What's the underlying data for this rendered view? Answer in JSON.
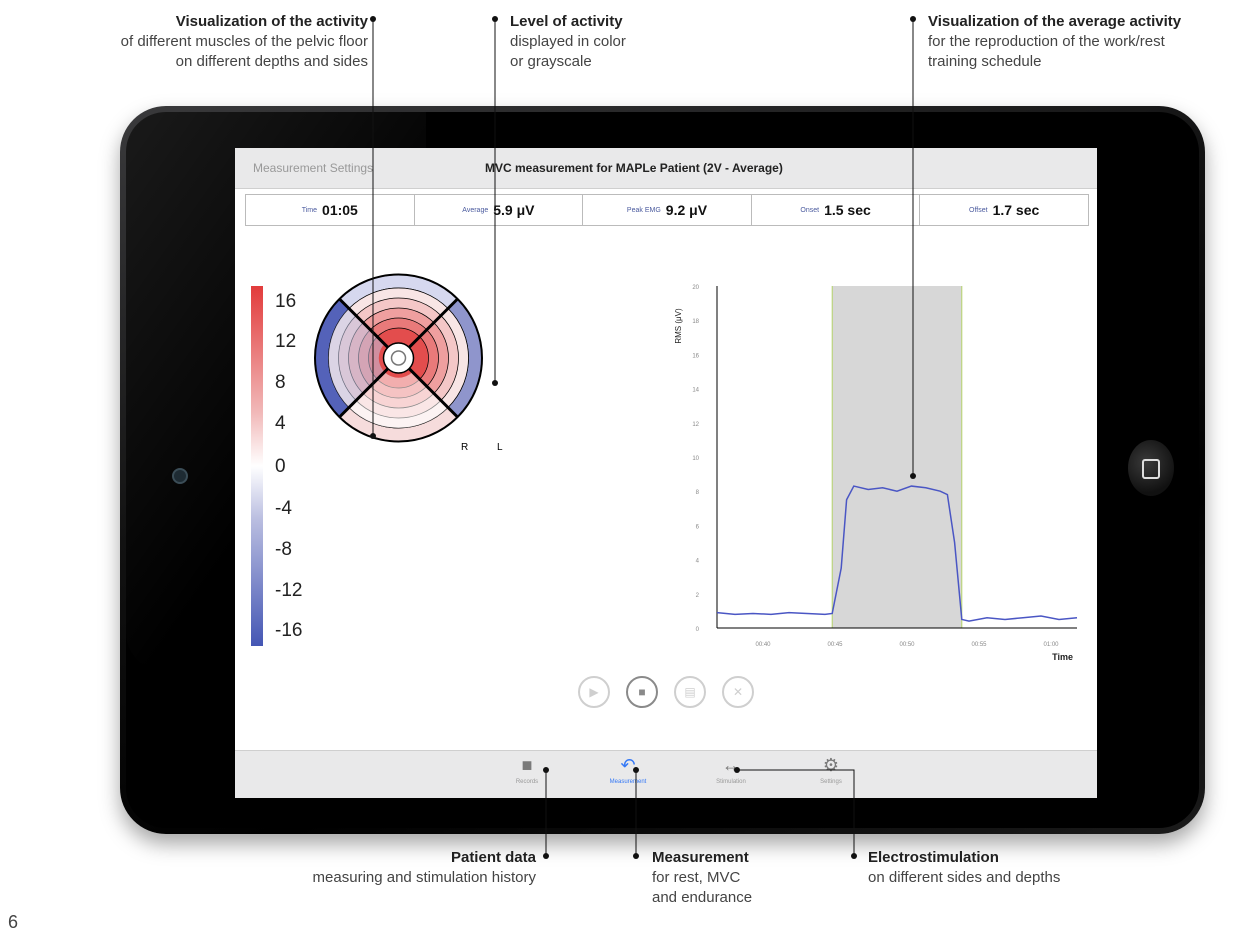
{
  "annotations": {
    "muscle_activity": {
      "title": "Visualization of the activity",
      "line1": "of different muscles of the pelvic floor",
      "line2": "on different depths and sides"
    },
    "level_of_activity": {
      "title": "Level of activity",
      "line1": "displayed in color",
      "line2": "or grayscale"
    },
    "average_activity": {
      "title": "Visualization of the average activity",
      "line1": "for the reproduction of the work/rest",
      "line2": "training schedule"
    },
    "patient_data": {
      "title": "Patient data",
      "line1": "measuring and stimulation history"
    },
    "measurement": {
      "title": "Measurement",
      "line1": "for rest, MVC",
      "line2": "and endurance"
    },
    "electrostimulation": {
      "title": "Electrostimulation",
      "line1": "on different sides and depths"
    }
  },
  "page_number": "6",
  "app": {
    "settings_link": "Measurement Settings",
    "title": "MVC measurement for MAPLe Patient (2V - Average)"
  },
  "stats": [
    {
      "label": "Time",
      "value": "01:05"
    },
    {
      "label": "Average",
      "value": "5.9 μV"
    },
    {
      "label": "Peak EMG",
      "value": "9.2 μV"
    },
    {
      "label": "Onset",
      "value": "1.5 sec"
    },
    {
      "label": "Offset",
      "value": "1.7 sec"
    }
  ],
  "colorbar": {
    "labels": [
      "16",
      "12",
      "8",
      "4",
      "0",
      "-4",
      "-8",
      "-12",
      "-16"
    ]
  },
  "polar_center": {
    "left": "R",
    "right": "L"
  },
  "chart_data": {
    "type": "line",
    "ylabel": "RMS (μV)",
    "xlabel": "Time",
    "ylim": [
      0,
      20
    ],
    "yticks": [
      "0",
      "2",
      "4",
      "6",
      "8",
      "10",
      "12",
      "14",
      "16",
      "18",
      "20"
    ],
    "xticks": [
      "00:40",
      "00:45",
      "00:50",
      "00:55",
      "01:00"
    ],
    "xrange": [
      0,
      1
    ],
    "rest_work_window": [
      0.32,
      0.68
    ],
    "series": [
      {
        "x": [
          0,
          0.05,
          0.1,
          0.15,
          0.2,
          0.25,
          0.3,
          0.32,
          0.345,
          0.36,
          0.38,
          0.42,
          0.46,
          0.5,
          0.54,
          0.58,
          0.62,
          0.64,
          0.66,
          0.68,
          0.7,
          0.75,
          0.8,
          0.85,
          0.9,
          0.95,
          1.0
        ],
        "values": [
          0.9,
          0.8,
          0.85,
          0.8,
          0.9,
          0.85,
          0.8,
          0.85,
          3.5,
          7.5,
          8.3,
          8.1,
          8.2,
          8.0,
          8.3,
          8.2,
          8.0,
          7.8,
          5.0,
          0.5,
          0.4,
          0.6,
          0.5,
          0.6,
          0.7,
          0.5,
          0.6
        ]
      }
    ]
  },
  "controls": [
    "play",
    "stop",
    "save",
    "close"
  ],
  "tabs": [
    {
      "label": "Records",
      "icon": "folder-icon"
    },
    {
      "label": "Measurement",
      "icon": "stethoscope-icon",
      "active": true
    },
    {
      "label": "Stimulation",
      "icon": "arrows-icon"
    },
    {
      "label": "Settings",
      "icon": "gear-icon"
    }
  ]
}
